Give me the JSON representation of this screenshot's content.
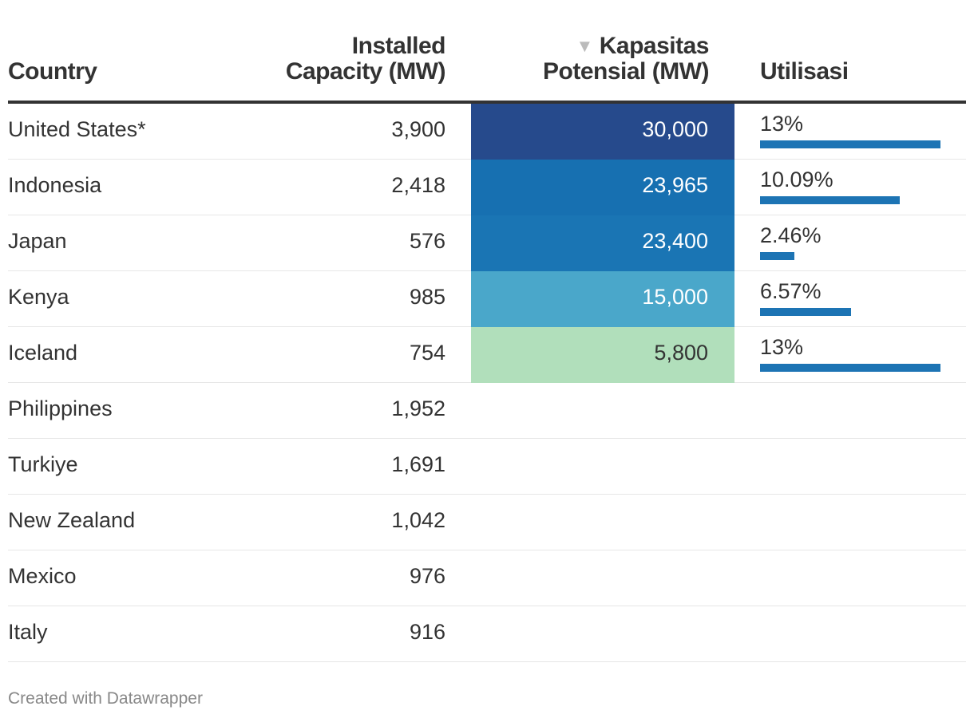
{
  "chart_data": {
    "type": "table",
    "columns": [
      "Country",
      "Installed Capacity (MW)",
      "Kapasitas Potensial (MW)",
      "Utilisasi"
    ],
    "header": {
      "country_label": "Country",
      "installed_line1": "Installed",
      "installed_line2": "Capacity (MW)",
      "potential_line1": "Kapasitas",
      "potential_line2": "Potensial (MW)",
      "sort_indicator": "▼",
      "util_label": "Utilisasi"
    },
    "util_max": 13,
    "rows": [
      {
        "country": "United States*",
        "installed": "3,900",
        "potential": "30,000",
        "potential_value": 30000,
        "utilisasi": "13%",
        "util_value": 13,
        "cell_color": "#264a8c",
        "text_color": "#ffffff"
      },
      {
        "country": "Indonesia",
        "installed": "2,418",
        "potential": "23,965",
        "potential_value": 23965,
        "utilisasi": "10.09%",
        "util_value": 10.09,
        "cell_color": "#1770b1",
        "text_color": "#ffffff"
      },
      {
        "country": "Japan",
        "installed": "576",
        "potential": "23,400",
        "potential_value": 23400,
        "utilisasi": "2.46%",
        "util_value": 2.46,
        "cell_color": "#1a75b4",
        "text_color": "#ffffff"
      },
      {
        "country": "Kenya",
        "installed": "985",
        "potential": "15,000",
        "potential_value": 15000,
        "utilisasi": "6.57%",
        "util_value": 6.57,
        "cell_color": "#4aa7ca",
        "text_color": "#ffffff"
      },
      {
        "country": "Iceland",
        "installed": "754",
        "potential": "5,800",
        "potential_value": 5800,
        "utilisasi": "13%",
        "util_value": 13,
        "cell_color": "#b1dfbb",
        "text_color": "#333333"
      },
      {
        "country": "Philippines",
        "installed": "1,952",
        "potential": "",
        "potential_value": null,
        "utilisasi": "",
        "util_value": null,
        "cell_color": "",
        "text_color": ""
      },
      {
        "country": "Turkiye",
        "installed": "1,691",
        "potential": "",
        "potential_value": null,
        "utilisasi": "",
        "util_value": null,
        "cell_color": "",
        "text_color": ""
      },
      {
        "country": "New Zealand",
        "installed": "1,042",
        "potential": "",
        "potential_value": null,
        "utilisasi": "",
        "util_value": null,
        "cell_color": "",
        "text_color": ""
      },
      {
        "country": "Mexico",
        "installed": "976",
        "potential": "",
        "potential_value": null,
        "utilisasi": "",
        "util_value": null,
        "cell_color": "",
        "text_color": ""
      },
      {
        "country": "Italy",
        "installed": "916",
        "potential": "",
        "potential_value": null,
        "utilisasi": "",
        "util_value": null,
        "cell_color": "",
        "text_color": ""
      }
    ],
    "bar_color": "#1d74b4"
  },
  "footer": {
    "credit": "Created with Datawrapper"
  }
}
